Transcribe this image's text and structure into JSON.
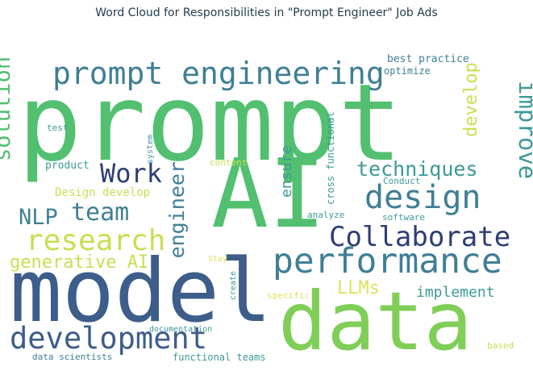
{
  "title": "Word Cloud for Responsibilities in \"Prompt Engineer\" Job Ads",
  "colors": {
    "dark_navy": "#2d3e73",
    "slate_blue": "#3d5d8a",
    "teal_blue": "#3f7f96",
    "teal": "#3c9a98",
    "green": "#52c070",
    "light_green": "#7fcf57",
    "lime": "#c9df51",
    "yellow": "#dde25b"
  },
  "words": [
    "prompt",
    "AI",
    "model",
    "data",
    "prompt engineering",
    "development",
    "performance",
    "design",
    "Collaborate",
    "research",
    "techniques",
    "Work",
    "team",
    "NLP",
    "improve",
    "solution",
    "engineer",
    "generative AI",
    "LLMs",
    "implement",
    "develop",
    "ensure",
    "best practice",
    "optimize",
    "cross functional",
    "Design develop",
    "test",
    "system",
    "product",
    "content",
    "Conduct",
    "software",
    "analyze",
    "Stay",
    "create",
    "specific",
    "documentation",
    "data scientists",
    "functional teams",
    "based"
  ]
}
